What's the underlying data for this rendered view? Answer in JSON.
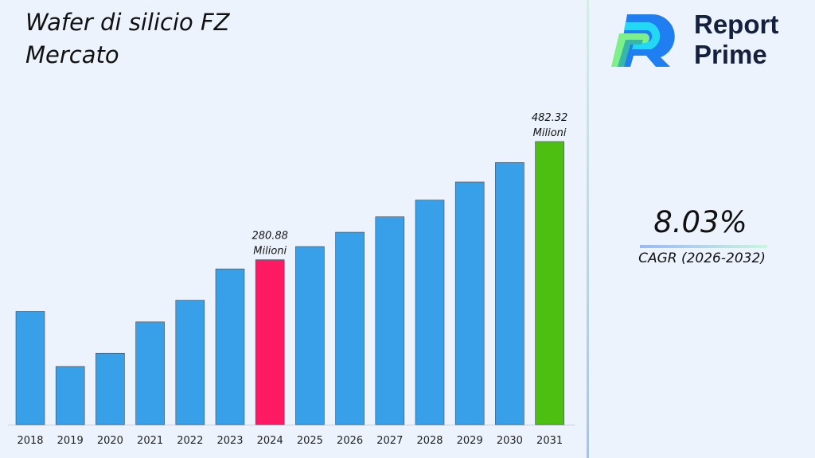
{
  "title": "Wafer di silicio FZ Mercato",
  "brand": {
    "line1": "Report",
    "line2": "Prime"
  },
  "cagr": {
    "value": "8.03%",
    "label": "CAGR (2026-2032)"
  },
  "colors": {
    "default_bar": "#38a0e8",
    "highlight_2024": "#fe1a62",
    "highlight_2031": "#4cbf10",
    "background": "#edf3fd"
  },
  "chart_data": {
    "type": "bar",
    "title": "Wafer di silicio FZ Mercato",
    "categories": [
      "2018",
      "2019",
      "2020",
      "2021",
      "2022",
      "2023",
      "2024",
      "2025",
      "2026",
      "2027",
      "2028",
      "2029",
      "2030",
      "2031"
    ],
    "values": [
      193.1,
      99.1,
      121.6,
      175.0,
      211.9,
      265.3,
      280.88,
      303.4,
      327.8,
      354.1,
      382.6,
      413.3,
      446.5,
      482.32
    ],
    "unit": "Milioni",
    "data_labels": [
      {
        "category": "2024",
        "value": "280.88",
        "unit": "Milioni"
      },
      {
        "category": "2031",
        "value": "482.32",
        "unit": "Milioni"
      }
    ],
    "xlabel": "",
    "ylabel": "",
    "ylim": [
      0,
      482.32
    ],
    "grid": false,
    "legend": "none"
  }
}
